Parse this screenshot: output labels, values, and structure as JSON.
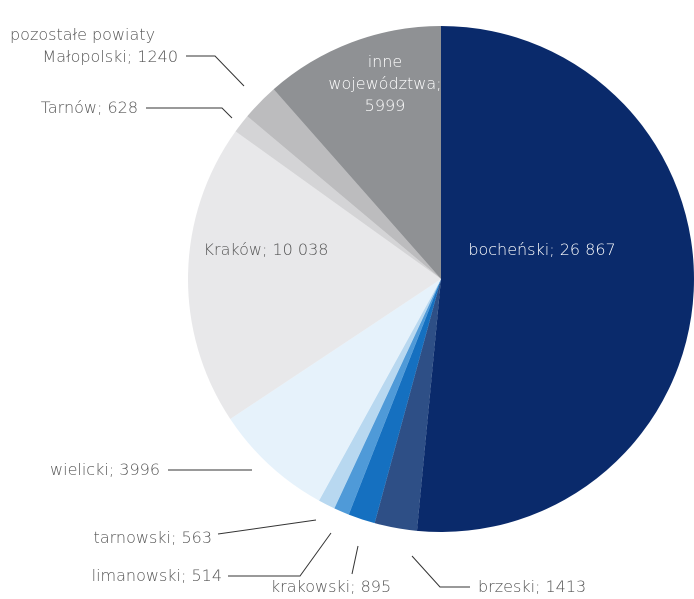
{
  "chart_data": {
    "type": "pie",
    "categories": [
      "bocheński; 26 867",
      "brzeski; 1413",
      "krakowski; 895",
      "limanowski; 514",
      "tarnowski; 563",
      "wielicki; 3996",
      "Kraków; 10 038",
      "Tarnów; 628",
      "pozostałe powiaty\nMałopolski; 1240",
      "inne\nwojewództwa;\n5999"
    ],
    "values": [
      26867,
      1413,
      895,
      514,
      563,
      3996,
      10038,
      628,
      1240,
      5999
    ],
    "colors": [
      "#0a2a6b",
      "#2e4f86",
      "#1570c0",
      "#4f9ad8",
      "#b8d8f0",
      "#e6f2fb",
      "#e8e8ea",
      "#d4d4d6",
      "#bcbcbe",
      "#8f9194"
    ]
  }
}
